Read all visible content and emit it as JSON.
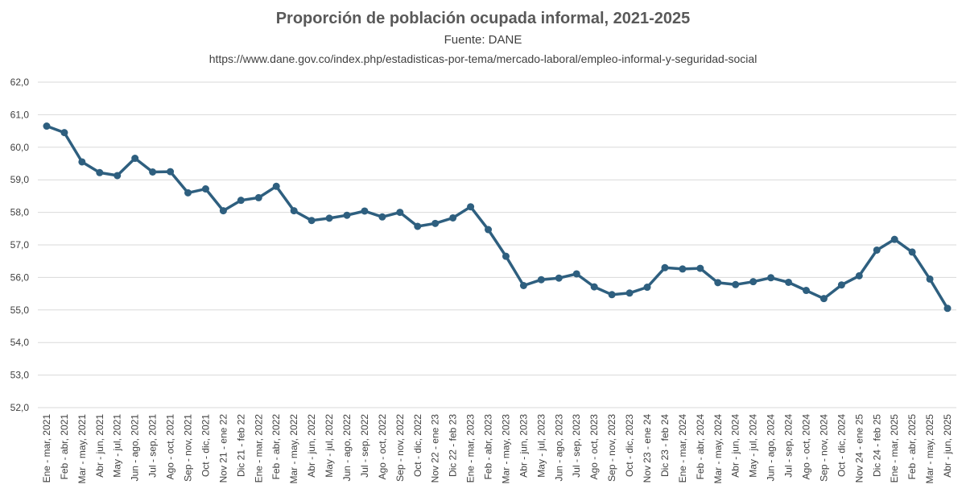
{
  "title": "Proporción de población ocupada informal, 2021-2025",
  "subtitle": "Fuente:  DANE",
  "source_url": "https://www.dane.gov.co/index.php/estadisticas-por-tema/mercado-laboral/empleo-informal-y-seguridad-social",
  "line_color": "#2e5f7f",
  "grid_color": "#d9d9d9",
  "chart_data": {
    "type": "line",
    "title": "Proporción de población ocupada informal, 2021-2025",
    "xlabel": "",
    "ylabel": "",
    "ylim": [
      52.0,
      62.0
    ],
    "yticks": [
      "52,0",
      "53,0",
      "54,0",
      "55,0",
      "56,0",
      "57,0",
      "58,0",
      "59,0",
      "60,0",
      "61,0",
      "62,0"
    ],
    "grid": true,
    "categories": [
      "Ene - mar, 2021",
      "Feb - abr, 2021",
      "Mar - may, 2021",
      "Abr - jun, 2021",
      "May - jul, 2021",
      "Jun - ago, 2021",
      "Jul - sep, 2021",
      "Ago - oct, 2021",
      "Sep - nov, 2021",
      "Oct - dic, 2021",
      "Nov 21 - ene 22",
      "Dic 21 - feb 22",
      "Ene - mar, 2022",
      "Feb - abr, 2022",
      "Mar - may, 2022",
      "Abr - jun, 2022",
      "May - jul, 2022",
      "Jun - ago, 2022",
      "Jul - sep, 2022",
      "Ago - oct, 2022",
      "Sep - nov, 2022",
      "Oct - dic, 2022",
      "Nov 22 - ene 23",
      "Dic 22 - feb 23",
      "Ene - mar, 2023",
      "Feb - abr, 2023",
      "Mar - may, 2023",
      "Abr - jun, 2023",
      "May - jul, 2023",
      "Jun - ago, 2023",
      "Jul - sep, 2023",
      "Ago - oct, 2023",
      "Sep - nov, 2023",
      "Oct - dic, 2023",
      "Nov 23 - ene 24",
      "Dic 23 - feb 24",
      "Ene - mar, 2024",
      "Feb - abr, 2024",
      "Mar - may, 2024",
      "Abr - jun, 2024",
      "May - jul, 2024",
      "Jun - ago, 2024",
      "Jul - sep, 2024",
      "Ago - oct, 2024",
      "Sep - nov, 2024",
      "Oct - dic, 2024",
      "Nov 24 - ene 25",
      "Dic 24 - feb 25",
      "Ene - mar, 2025",
      "Feb - abr, 2025",
      "Mar - may, 2025",
      "Abr - jun, 2025"
    ],
    "series": [
      {
        "values": [
          60.65,
          60.45,
          59.55,
          59.22,
          59.13,
          59.66,
          59.24,
          59.25,
          58.6,
          58.72,
          58.05,
          58.37,
          58.45,
          58.8,
          58.05,
          57.75,
          57.82,
          57.91,
          58.04,
          57.86,
          58.0,
          57.57,
          57.66,
          57.83,
          58.17,
          57.47,
          56.65,
          55.75,
          55.93,
          55.98,
          56.11,
          55.71,
          55.47,
          55.52,
          55.7,
          56.3,
          56.26,
          56.28,
          55.84,
          55.78,
          55.87,
          55.99,
          55.85,
          55.6,
          55.35,
          55.77,
          56.05,
          56.84,
          57.17,
          56.78,
          55.95,
          55.05
        ]
      }
    ]
  }
}
